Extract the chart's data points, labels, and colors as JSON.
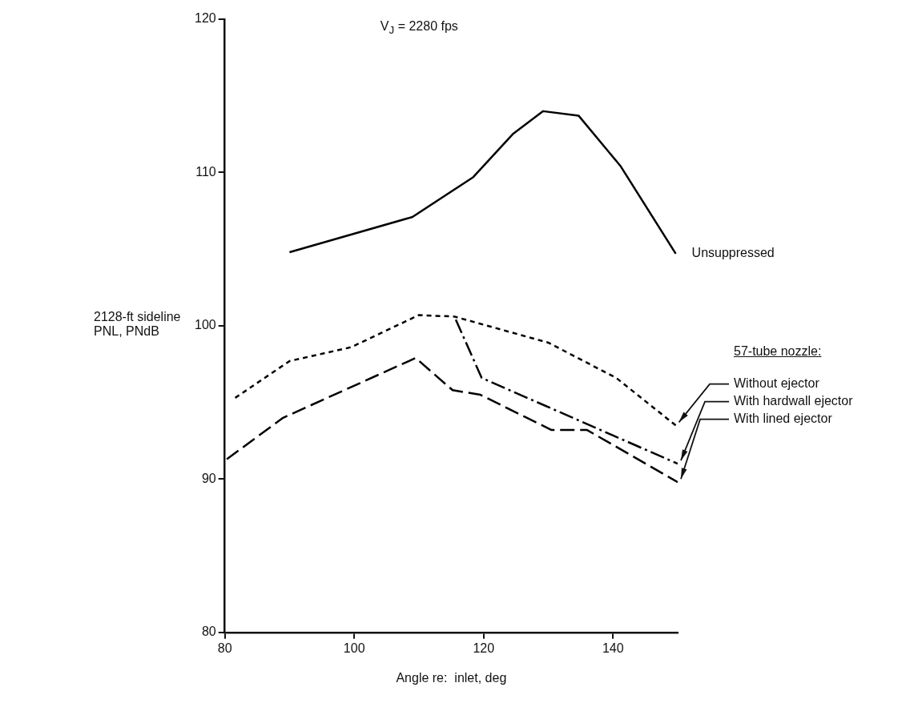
{
  "chart_data": {
    "type": "line",
    "title": "V$_{J}$ = 2280 fps",
    "xlabel": "Angle re:  inlet, deg",
    "ylabel": "2128-ft sideline\nPNL, PNdB",
    "legend_title": "57-tube nozzle:",
    "xlim": [
      80,
      150
    ],
    "xticks": [
      80,
      100,
      120,
      140
    ],
    "ylim": [
      80,
      120
    ],
    "yticks": [
      80,
      90,
      100,
      110,
      120
    ],
    "grid": false,
    "legend": false,
    "marker": "none",
    "series": [
      {
        "name": "Unsuppressed",
        "color": "#000000",
        "line_style": "solid",
        "x": [
          90,
          109,
          118.4,
          124.5,
          129.2,
          134.7,
          141.2,
          149.7
        ],
        "values": [
          104.8,
          107.1,
          109.7,
          112.5,
          114.0,
          113.7,
          110.4,
          104.7
        ]
      },
      {
        "name": "Without ejector",
        "color": "#000000",
        "line_style": "dotted",
        "x": [
          81.6,
          90,
          99.5,
          110,
          115.5,
          130,
          140.5,
          149.7
        ],
        "values": [
          95.3,
          97.7,
          98.6,
          100.7,
          100.6,
          98.9,
          96.6,
          93.5
        ]
      },
      {
        "name": "With hardwall ejector",
        "color": "#000000",
        "line_style": "dashdot",
        "x": [
          115.7,
          119.7,
          150
        ],
        "values": [
          100.4,
          96.6,
          91.0
        ]
      },
      {
        "name": "With lined ejector",
        "color": "#000000",
        "line_style": "dashed",
        "x": [
          80.3,
          89,
          109.5,
          115.2,
          119.5,
          130.5,
          136,
          150
        ],
        "values": [
          91.3,
          94.0,
          97.9,
          95.8,
          95.5,
          93.2,
          93.2,
          89.8
        ]
      }
    ]
  }
}
